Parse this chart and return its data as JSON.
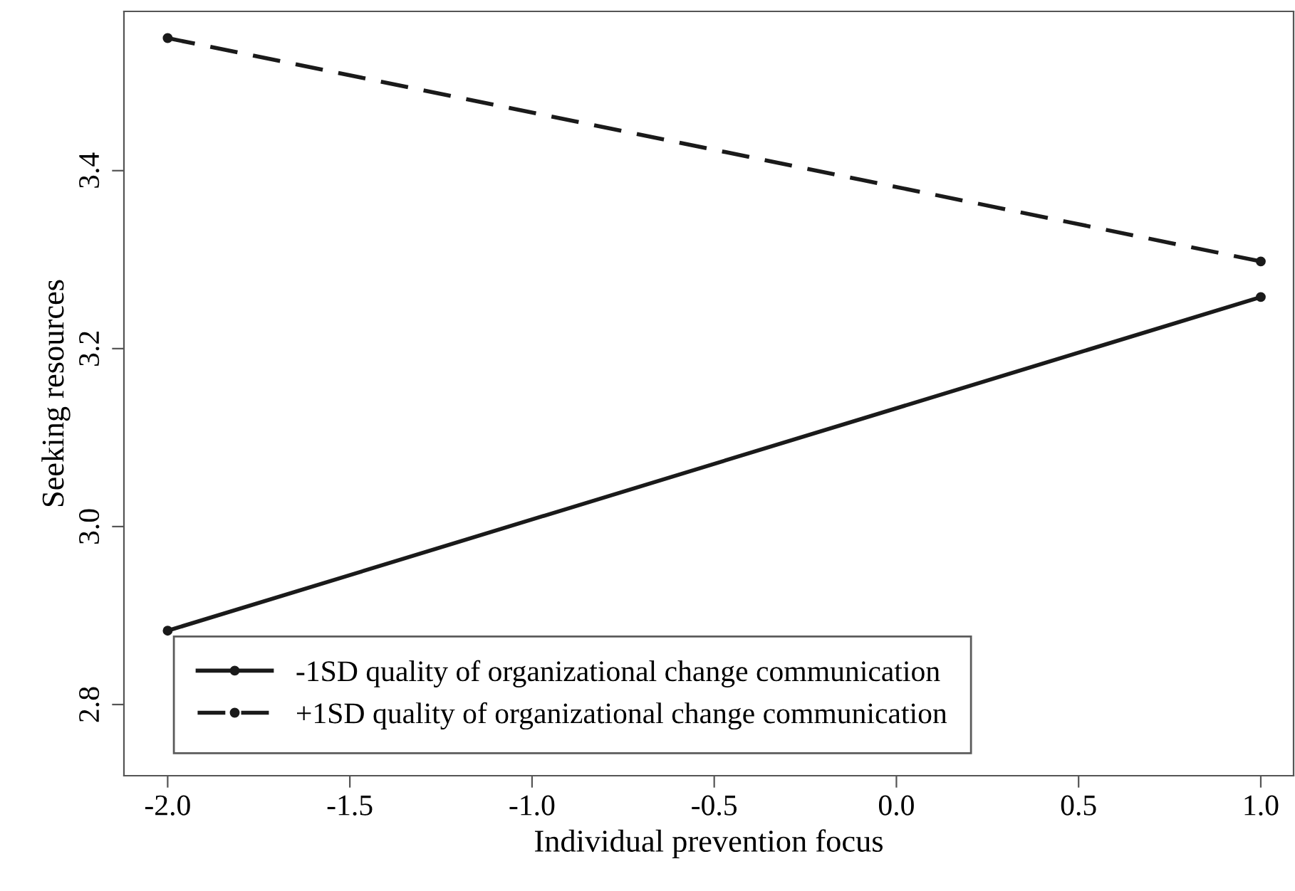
{
  "chart_data": {
    "type": "line",
    "xlabel": "Individual prevention focus",
    "ylabel": "Seeking resources",
    "x": [
      -2.0,
      1.0
    ],
    "series": [
      {
        "name": "-1SD quality of organizational change communication",
        "color": "#1a1a1a",
        "values": [
          2.883,
          3.258
        ],
        "line_style": "solid"
      },
      {
        "name": "+1SD quality of organizational change communication",
        "color": "#1a1a1a",
        "values": [
          3.549,
          3.298
        ],
        "line_style": "dashed"
      }
    ],
    "xlim": [
      -2.12,
      1.09
    ],
    "ylim": [
      2.72,
      3.579
    ],
    "xticks": [
      {
        "value": -2.0,
        "label": "-2.0"
      },
      {
        "value": -1.5,
        "label": "-1.5"
      },
      {
        "value": -1.0,
        "label": "-1.0"
      },
      {
        "value": -0.5,
        "label": "-0.5"
      },
      {
        "value": 0.0,
        "label": "0.0"
      },
      {
        "value": 0.5,
        "label": "0.5"
      },
      {
        "value": 1.0,
        "label": "1.0"
      }
    ],
    "yticks": [
      {
        "value": 2.8,
        "label": "2.8"
      },
      {
        "value": 3.0,
        "label": "3.0"
      },
      {
        "value": 3.2,
        "label": "3.2"
      },
      {
        "value": 3.4,
        "label": "3.4"
      }
    ],
    "marker": "circle",
    "grid": false,
    "legend": "bottom left"
  }
}
